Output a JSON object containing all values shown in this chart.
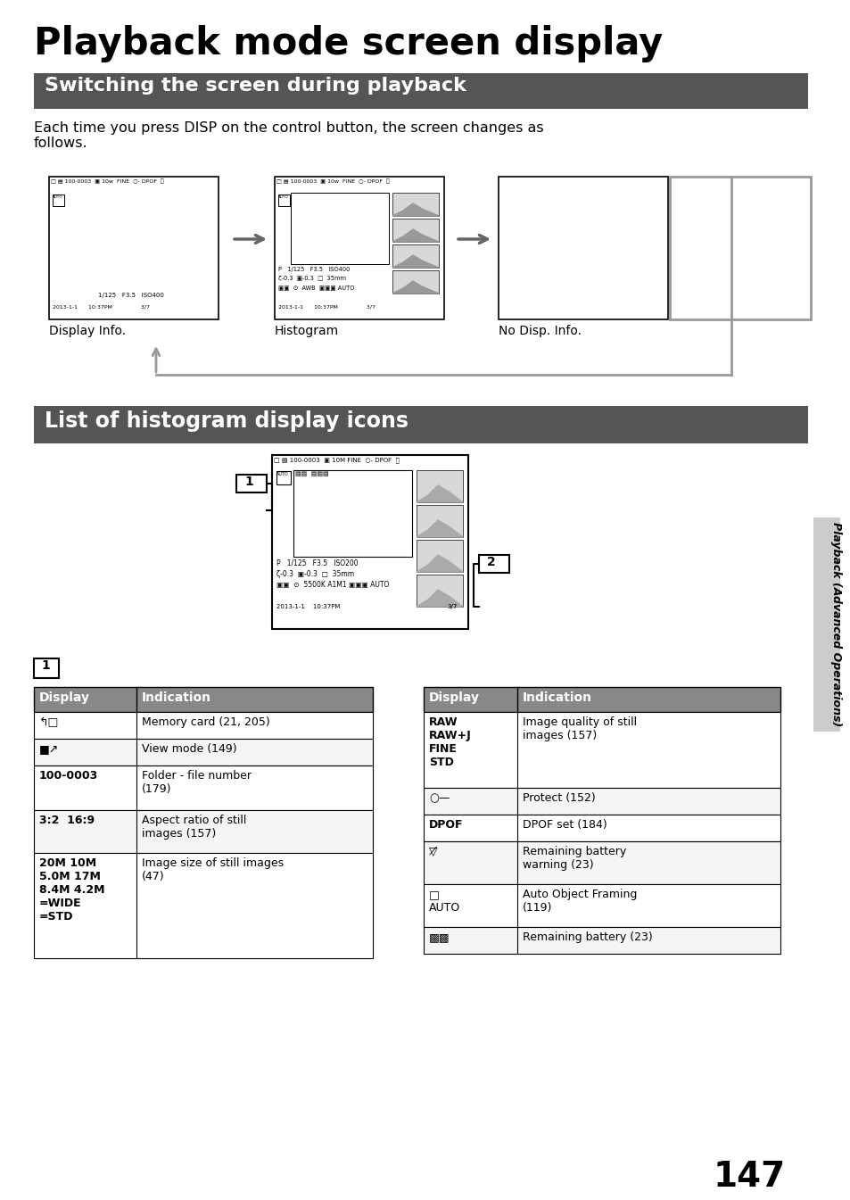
{
  "page_title": "Playback mode screen display",
  "section1_title": "Switching the screen during playback",
  "section1_body": "Each time you press DISP on the control button, the screen changes as\nfollows.",
  "section2_title": "List of histogram display icons",
  "screen_labels": [
    "Display Info.",
    "Histogram",
    "No Disp. Info."
  ],
  "table1_header": [
    "Display",
    "Indication"
  ],
  "table2_header": [
    "Display",
    "Indication"
  ],
  "sidebar_text": "Playback (Advanced Operations)",
  "page_number": "147",
  "header_bg": "#555555",
  "header_fg": "#ffffff",
  "table_header_bg": "#888888",
  "table_header_fg": "#ffffff",
  "body_bg": "#ffffff",
  "body_fg": "#000000"
}
